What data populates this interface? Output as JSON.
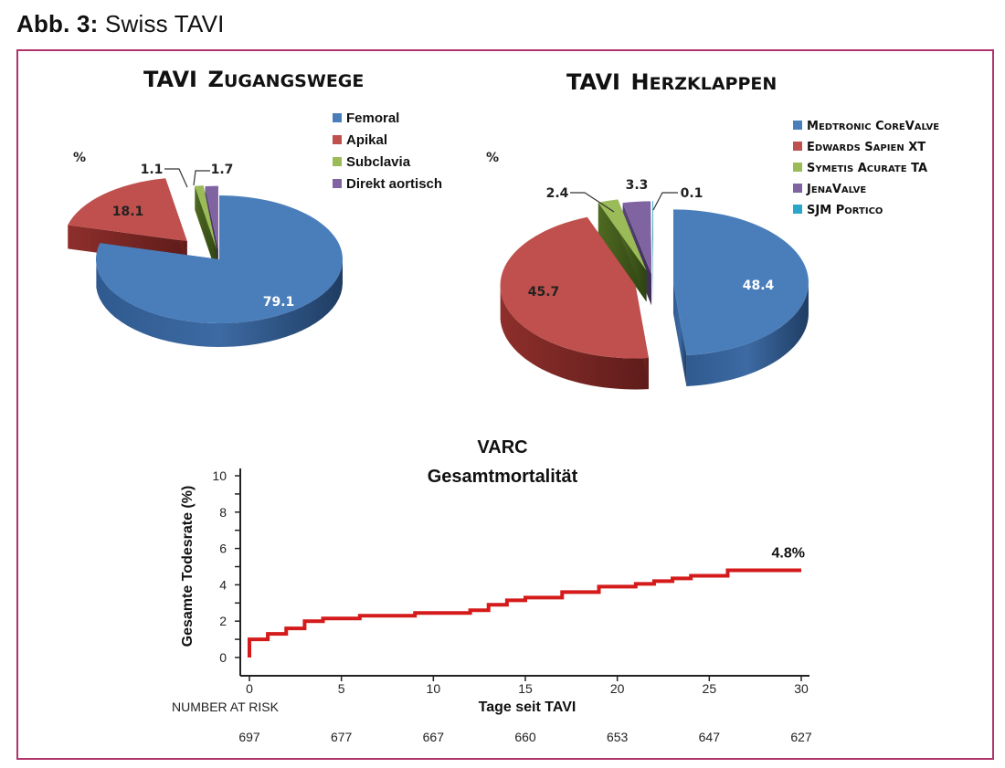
{
  "caption": {
    "number": "Abb. 3:",
    "title": "Swiss TAVI"
  },
  "colors": {
    "frame": "#b0336a",
    "blue": "#4a7ebb",
    "red": "#c0504d",
    "green": "#9bbb59",
    "purple": "#8064a2",
    "cyan": "#2ca6c8",
    "km_line": "#d41a1a"
  },
  "chart_data": [
    {
      "type": "pie",
      "title_main": "TAVI",
      "title_small_caps": "Zugangswege",
      "unit_label": "%",
      "legend_position": "top-right",
      "categories": [
        "Femoral",
        "Apikal",
        "Subclavia",
        "Direkt aortisch"
      ],
      "values": [
        79.1,
        18.1,
        1.1,
        1.7
      ],
      "value_labels": [
        "79.1",
        "18.1",
        "1.1",
        "1.7"
      ],
      "colors": [
        "#4a7ebb",
        "#c0504d",
        "#9bbb59",
        "#8064a2"
      ],
      "style": "3d-exploded"
    },
    {
      "type": "pie",
      "title_main": "TAVI",
      "title_small_caps": "Herzklappen",
      "unit_label": "%",
      "legend_position": "top-right",
      "categories": [
        "Medtronic CoreValve",
        "Edwards Sapien XT",
        "Symetis Acurate TA",
        "JenaValve",
        "SJM Portico"
      ],
      "values": [
        48.4,
        45.7,
        2.4,
        3.3,
        0.1
      ],
      "value_labels": [
        "48.4",
        "45.7",
        "2.4",
        "3.3",
        "0.1"
      ],
      "colors": [
        "#4a7ebb",
        "#c0504d",
        "#9bbb59",
        "#8064a2",
        "#2ca6c8"
      ],
      "style": "3d-exploded"
    },
    {
      "type": "line",
      "subtype": "step (Kaplan-Meier)",
      "title": "VARC",
      "subtitle": "Gesamtmortalität",
      "xlabel": "Tage seit TAVI",
      "ylabel": "Gesamte Todesrate (%)",
      "xlim": [
        0,
        30
      ],
      "ylim": [
        0,
        10
      ],
      "x_ticks": [
        0,
        5,
        10,
        15,
        20,
        25,
        30
      ],
      "y_ticks": [
        0,
        2,
        4,
        6,
        8,
        10
      ],
      "grid": false,
      "series": [
        {
          "name": "Gesamtmortalität",
          "x": [
            0,
            0,
            1,
            2,
            3,
            4,
            6,
            9,
            12,
            13,
            14,
            15,
            17,
            19,
            21,
            22,
            23,
            24,
            26,
            30
          ],
          "y": [
            0,
            1.0,
            1.3,
            1.6,
            2.0,
            2.15,
            2.3,
            2.45,
            2.6,
            2.9,
            3.15,
            3.3,
            3.6,
            3.9,
            4.05,
            4.2,
            4.35,
            4.5,
            4.8,
            4.8
          ]
        }
      ],
      "end_annotation": "4.8%",
      "number_at_risk": {
        "label": "NUMBER AT RISK",
        "x": [
          0,
          5,
          10,
          15,
          20,
          25,
          30
        ],
        "values": [
          "697",
          "677",
          "667",
          "660",
          "653",
          "647",
          "627"
        ]
      }
    }
  ]
}
